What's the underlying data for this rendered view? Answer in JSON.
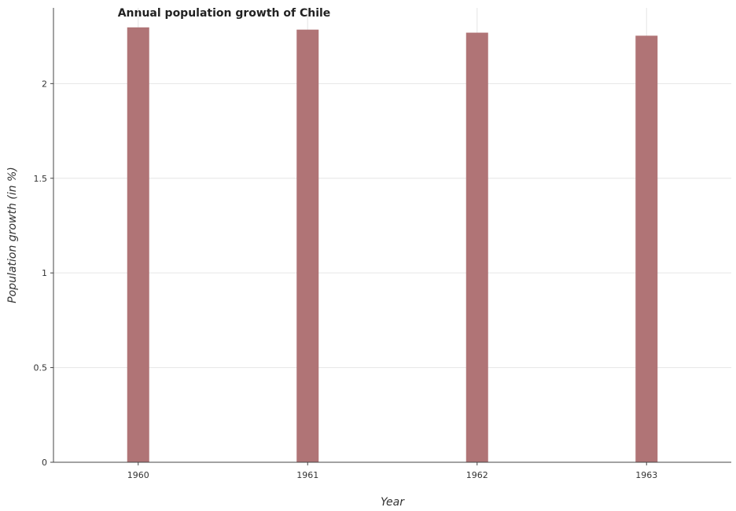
{
  "chart_data": {
    "type": "bar",
    "title": "Annual population growth of Chile",
    "xlabel": "Year",
    "ylabel": "Population growth (in %)",
    "categories": [
      "1960",
      "1961",
      "1962",
      "1963"
    ],
    "values": [
      2.297,
      2.285,
      2.269,
      2.253
    ],
    "ylim": [
      0,
      2.4
    ],
    "yticks": [
      0,
      0.5,
      1,
      1.5,
      2
    ],
    "ytick_labels": [
      "0",
      "0.5",
      "1",
      "1.5",
      "2"
    ],
    "grid": true,
    "bar_color": "#b07476",
    "legend": false
  }
}
